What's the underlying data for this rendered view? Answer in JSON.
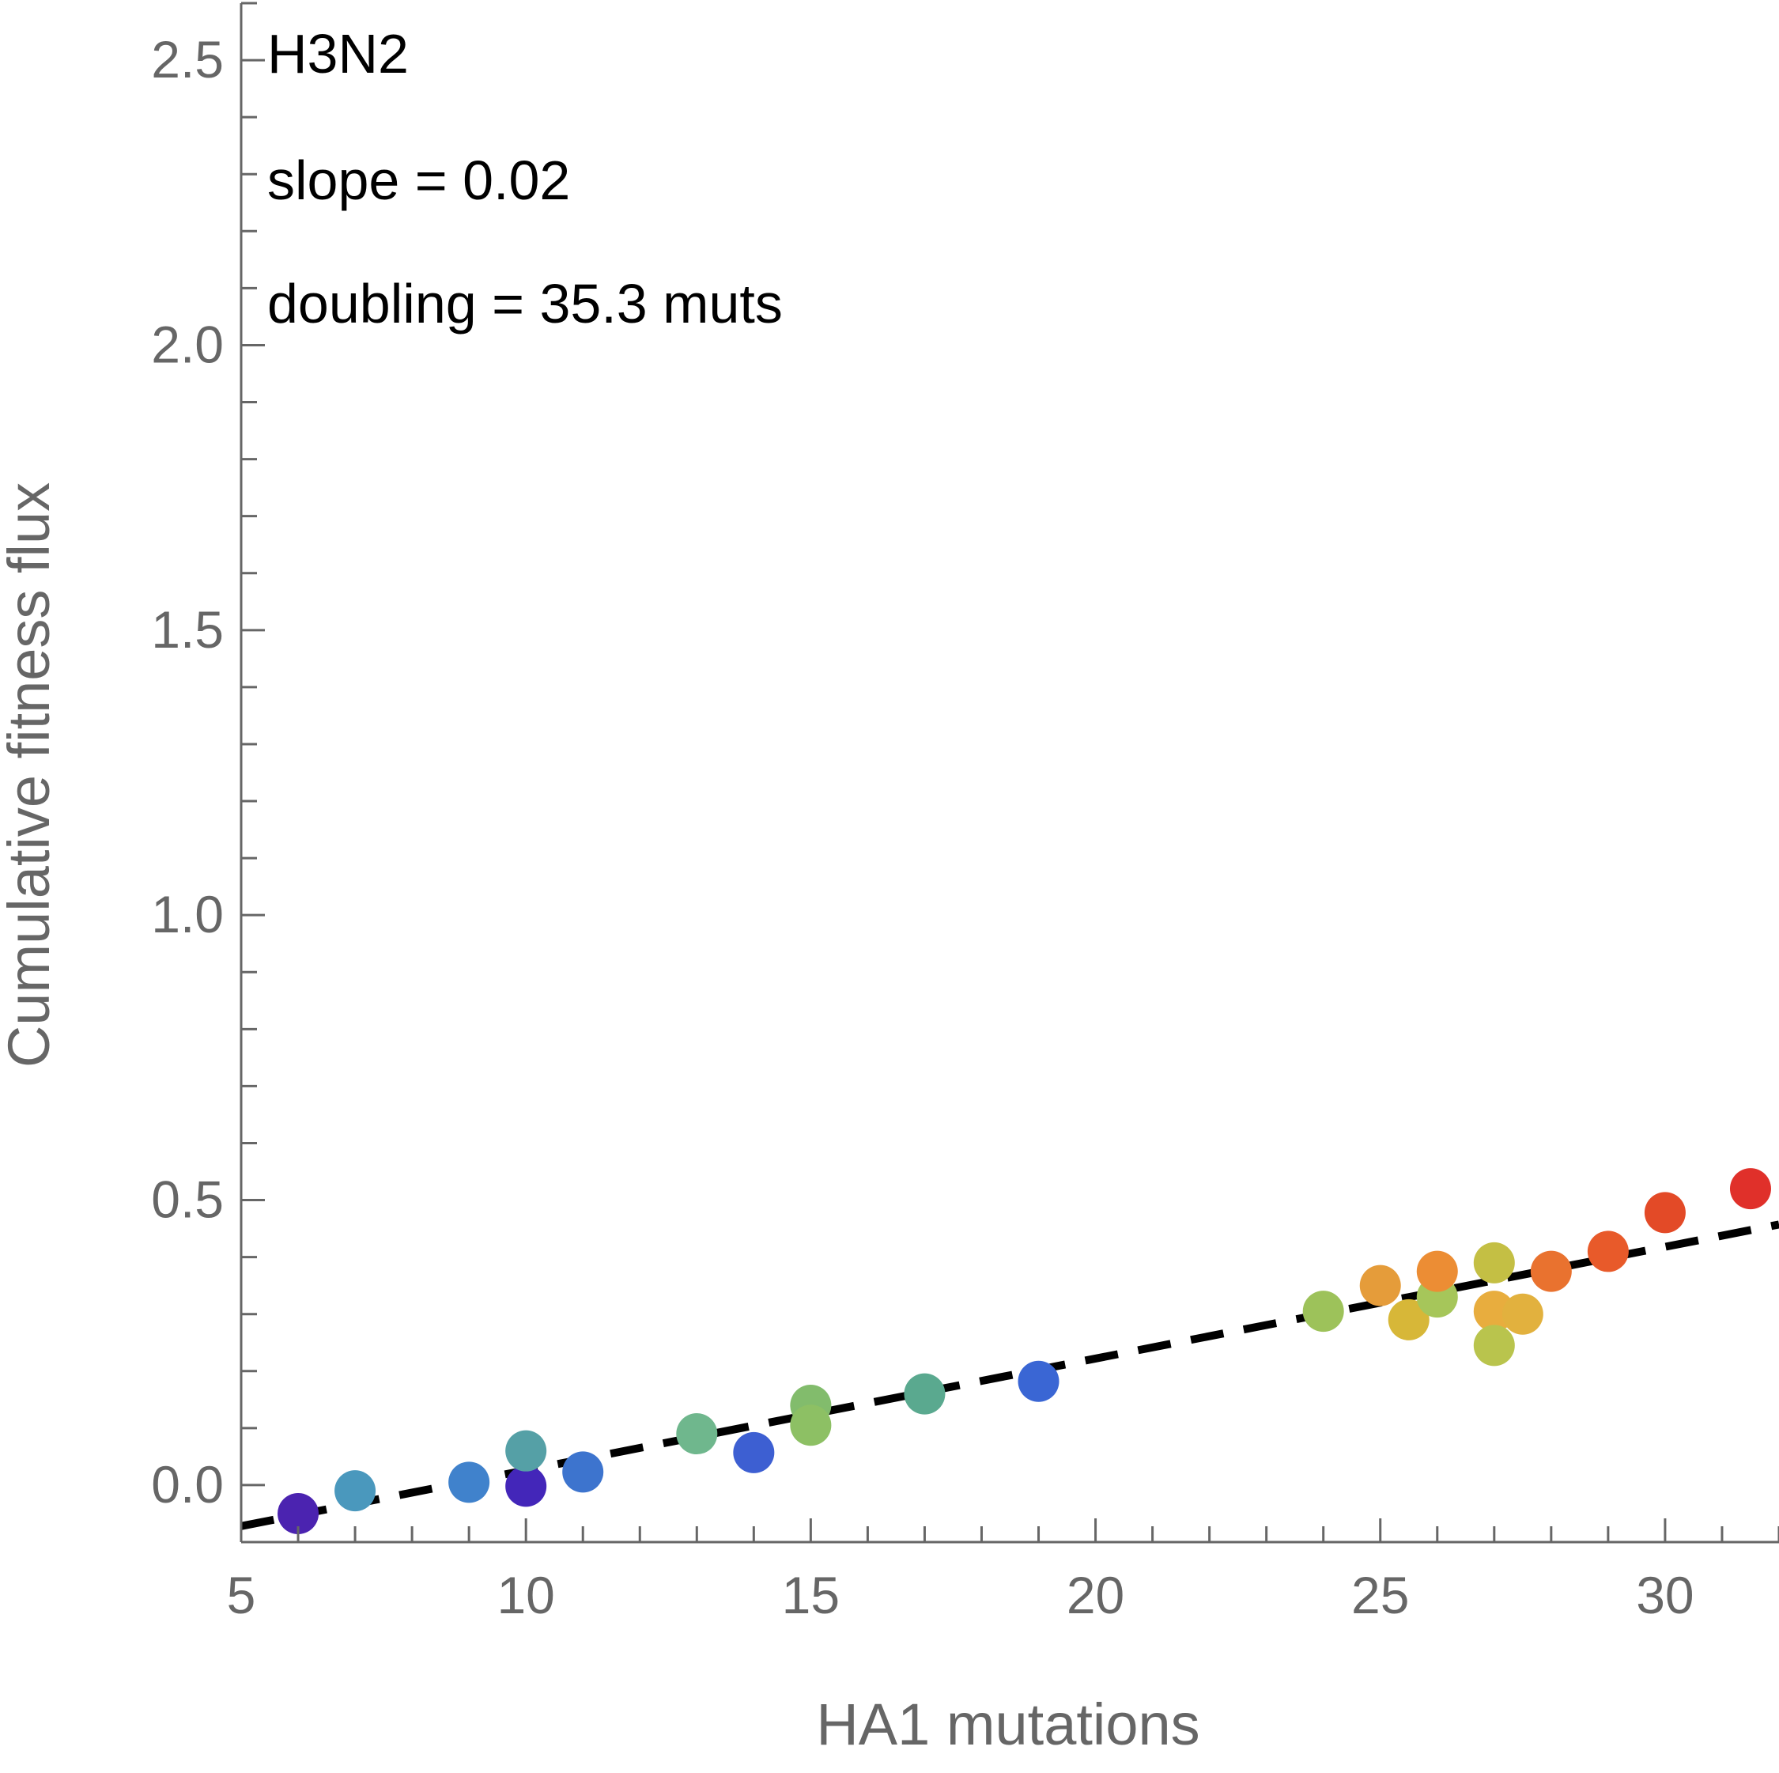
{
  "chart_data": {
    "type": "scatter",
    "xlabel": "HA1 mutations",
    "ylabel": "Cumulative fitness flux",
    "xlim": [
      5,
      32
    ],
    "ylim": [
      -0.1,
      2.6
    ],
    "x_ticks": [
      5,
      10,
      15,
      20,
      25,
      30
    ],
    "x_tick_labels": [
      "5",
      "10",
      "15",
      "20",
      "25",
      "30"
    ],
    "y_ticks": [
      0.0,
      0.5,
      1.0,
      1.5,
      2.0,
      2.5
    ],
    "y_tick_labels": [
      "0.0",
      "0.5",
      "1.0",
      "1.5",
      "2.0",
      "2.5"
    ],
    "grid": false,
    "annotations": {
      "subtype": "H3N2",
      "slope": "slope = 0.02",
      "doubling": "doubling = 35.3 muts"
    },
    "fit_line": {
      "style": "dashed",
      "color": "#000000",
      "slope": 0.0196,
      "intercept": -0.17
    },
    "points": [
      {
        "x": 6,
        "y": -0.05,
        "color": "#4b23b0"
      },
      {
        "x": 7,
        "y": -0.01,
        "color": "#4a98bd"
      },
      {
        "x": 9,
        "y": 0.005,
        "color": "#4082cc"
      },
      {
        "x": 10,
        "y": -0.002,
        "color": "#4326b9"
      },
      {
        "x": 10,
        "y": 0.06,
        "color": "#55a0a6"
      },
      {
        "x": 11,
        "y": 0.023,
        "color": "#3d74ce"
      },
      {
        "x": 13,
        "y": 0.09,
        "color": "#6fb78d"
      },
      {
        "x": 14,
        "y": 0.057,
        "color": "#3d5fd2"
      },
      {
        "x": 15,
        "y": 0.14,
        "color": "#82bc6c"
      },
      {
        "x": 15,
        "y": 0.105,
        "color": "#8dc064"
      },
      {
        "x": 17,
        "y": 0.16,
        "color": "#5aa98f"
      },
      {
        "x": 19,
        "y": 0.182,
        "color": "#3a66d4"
      },
      {
        "x": 24,
        "y": 0.305,
        "color": "#9dc25a"
      },
      {
        "x": 25,
        "y": 0.35,
        "color": "#e59c3a"
      },
      {
        "x": 25.5,
        "y": 0.29,
        "color": "#d7b738"
      },
      {
        "x": 26,
        "y": 0.33,
        "color": "#a6c65a"
      },
      {
        "x": 26,
        "y": 0.375,
        "color": "#ec8d34"
      },
      {
        "x": 27,
        "y": 0.39,
        "color": "#c4bf44"
      },
      {
        "x": 27,
        "y": 0.305,
        "color": "#e8ad3e"
      },
      {
        "x": 27,
        "y": 0.245,
        "color": "#b9c44d"
      },
      {
        "x": 27.5,
        "y": 0.3,
        "color": "#e2b13e"
      },
      {
        "x": 28,
        "y": 0.375,
        "color": "#e9722f"
      },
      {
        "x": 29,
        "y": 0.41,
        "color": "#e85a2a"
      },
      {
        "x": 30,
        "y": 0.478,
        "color": "#e34a27"
      },
      {
        "x": 31.5,
        "y": 0.52,
        "color": "#e0302a"
      }
    ]
  }
}
